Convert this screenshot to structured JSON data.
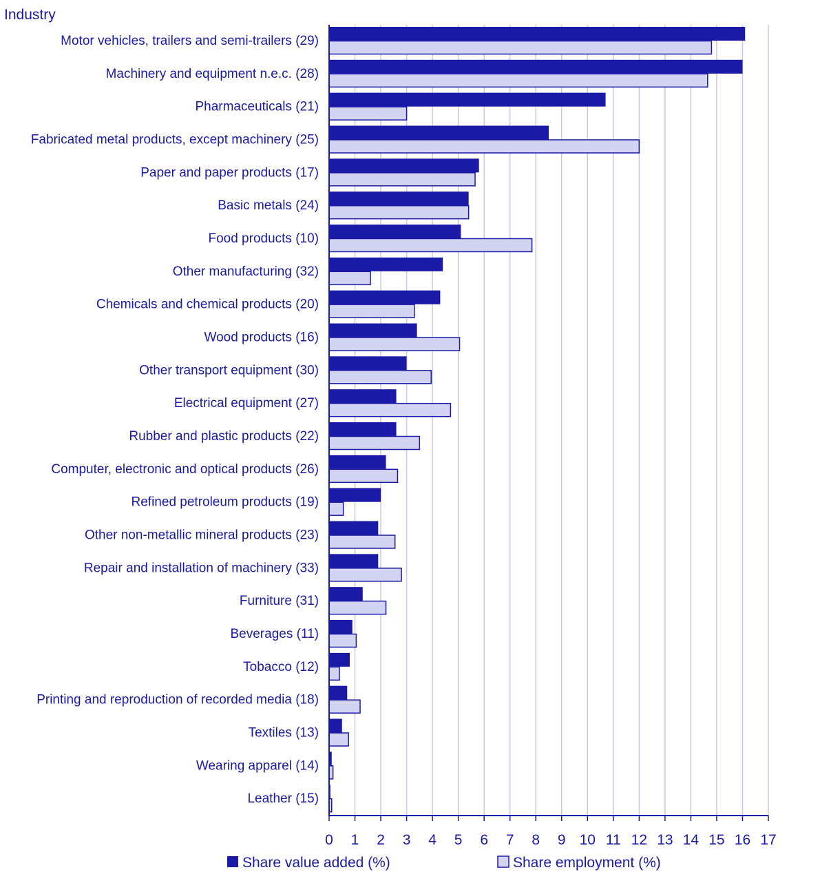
{
  "chart_data": {
    "type": "bar",
    "orientation": "horizontal",
    "ylabel": "Industry",
    "xlabel": "",
    "xlim": [
      0,
      17
    ],
    "xticks": [
      0,
      1,
      2,
      3,
      4,
      5,
      6,
      7,
      8,
      9,
      10,
      11,
      12,
      13,
      14,
      15,
      16,
      17
    ],
    "grid": true,
    "legend_position": "bottom",
    "categories": [
      "Motor vehicles, trailers and semi-trailers (29)",
      "Machinery and equipment n.e.c. (28)",
      "Pharmaceuticals (21)",
      "Fabricated metal products, except machinery (25)",
      "Paper and paper products (17)",
      "Basic metals (24)",
      "Food products (10)",
      "Other manufacturing (32)",
      "Chemicals and chemical products (20)",
      "Wood products (16)",
      "Other transport equipment (30)",
      "Electrical equipment (27)",
      "Rubber and plastic products (22)",
      "Computer, electronic and optical products (26)",
      "Refined petroleum products (19)",
      "Other non-metallic mineral products (23)",
      "Repair and installation of machinery (33)",
      "Furniture (31)",
      "Beverages (11)",
      "Tobacco (12)",
      "Printing and reproduction of recorded media (18)",
      "Textiles (13)",
      "Wearing apparel (14)",
      "Leather (15)"
    ],
    "series": [
      {
        "name": "Share value added (%)",
        "color": "#1a1aa6",
        "values": [
          16.1,
          16.0,
          10.7,
          8.5,
          5.8,
          5.4,
          5.1,
          4.4,
          4.3,
          3.4,
          3.0,
          2.6,
          2.6,
          2.2,
          2.0,
          1.9,
          1.9,
          1.3,
          0.9,
          0.8,
          0.7,
          0.5,
          0.1,
          0.05
        ]
      },
      {
        "name": "Share employment (%)",
        "color": "#d3d3f2",
        "border_color": "#1a1aa6",
        "values": [
          14.8,
          14.65,
          3.0,
          12.0,
          5.65,
          5.4,
          7.85,
          1.6,
          3.3,
          5.05,
          3.95,
          4.7,
          3.5,
          2.65,
          0.55,
          2.55,
          2.8,
          2.2,
          1.05,
          0.4,
          1.2,
          0.75,
          0.15,
          0.1
        ]
      }
    ]
  }
}
